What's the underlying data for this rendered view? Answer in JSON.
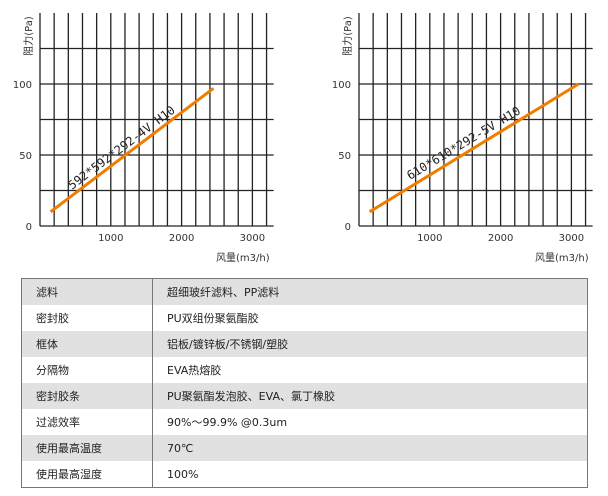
{
  "chart_data": [
    {
      "type": "line",
      "xlabel": "风量(m3/h)",
      "ylabel": "阻力(Pa)",
      "xlim": [
        0,
        3300
      ],
      "ylim": [
        0,
        150
      ],
      "xticks": [
        1000,
        2000,
        3000
      ],
      "yticks": [
        0,
        50,
        100
      ],
      "x_grid_step": 200,
      "y_grid_step": 25,
      "grid": true,
      "series": [
        {
          "name": "592*592*292-4V H10",
          "color": "#f07d00",
          "x": [
            150,
            2450
          ],
          "y": [
            10,
            97
          ]
        }
      ]
    },
    {
      "type": "line",
      "xlabel": "风量(m3/h)",
      "ylabel": "阻力(Pa)",
      "xlim": [
        0,
        3300
      ],
      "ylim": [
        0,
        150
      ],
      "xticks": [
        1000,
        2000,
        3000
      ],
      "yticks": [
        0,
        50,
        100
      ],
      "x_grid_step": 200,
      "y_grid_step": 25,
      "grid": true,
      "series": [
        {
          "name": "610*610*292-5V H10",
          "color": "#f07d00",
          "x": [
            150,
            3100
          ],
          "y": [
            10,
            100
          ]
        }
      ]
    }
  ],
  "table": [
    [
      "滤料",
      "超细玻纤滤料、PP滤料"
    ],
    [
      "密封胶",
      "PU双组份聚氨酯胶"
    ],
    [
      "框体",
      "铝板/镀锌板/不锈钢/塑胶"
    ],
    [
      "分隔物",
      "EVA热熔胶"
    ],
    [
      "密封胶条",
      "PU聚氨酯发泡胶、EVA、氯丁橡胶"
    ],
    [
      "过滤效率",
      "90%～99.9% @0.3um"
    ],
    [
      "使用最高温度",
      "70℃"
    ],
    [
      "使用最高湿度",
      "100%"
    ]
  ]
}
